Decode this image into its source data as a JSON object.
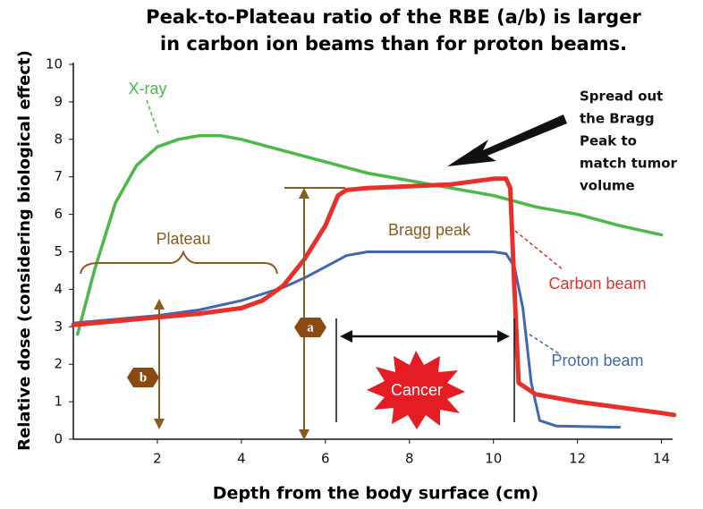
{
  "chart_data": {
    "type": "line",
    "title": [
      "Peak-to-Plateau ratio of the RBE (a/b) is larger",
      "in carbon ion beams than for proton beams."
    ],
    "x_label": "Depth from the body surface (cm)",
    "y_label": "Relative dose (considering biological effect)",
    "xlim": [
      0,
      14.2
    ],
    "ylim": [
      0,
      10
    ],
    "xticks": [
      2,
      4,
      6,
      8,
      10,
      12,
      14
    ],
    "yticks": [
      0,
      1,
      2,
      3,
      4,
      5,
      6,
      7,
      8,
      9,
      10
    ],
    "grid": false,
    "series": [
      {
        "name": "X-ray",
        "color": "#4cb847",
        "x": [
          0.1,
          0.5,
          1,
          1.5,
          2,
          2.5,
          3,
          3.5,
          4,
          5,
          6,
          7,
          8,
          9,
          10,
          11,
          12,
          13,
          14
        ],
        "values": [
          2.8,
          4.5,
          6.3,
          7.3,
          7.8,
          8.0,
          8.1,
          8.1,
          8.0,
          7.7,
          7.4,
          7.1,
          6.9,
          6.7,
          6.5,
          6.2,
          6.0,
          5.7,
          5.45
        ]
      },
      {
        "name": "Carbon beam",
        "color": "#e8302a",
        "x": [
          0,
          1,
          2,
          3,
          4,
          4.5,
          5,
          5.5,
          6,
          6.3,
          6.5,
          7,
          8,
          9,
          10,
          10.3,
          10.4,
          10.5,
          10.6,
          11,
          12,
          13,
          14,
          14.3
        ],
        "values": [
          3.05,
          3.15,
          3.25,
          3.35,
          3.5,
          3.7,
          4.1,
          4.8,
          5.7,
          6.5,
          6.65,
          6.7,
          6.75,
          6.8,
          6.95,
          6.95,
          6.7,
          4.0,
          1.5,
          1.2,
          1.0,
          0.85,
          0.7,
          0.65
        ]
      },
      {
        "name": "Proton beam",
        "color": "#3f68b1",
        "x": [
          0,
          1,
          2,
          3,
          4,
          5,
          5.5,
          6,
          6.5,
          7,
          8,
          9,
          10,
          10.3,
          10.5,
          10.7,
          10.9,
          11.1,
          11.5,
          13
        ],
        "values": [
          3.1,
          3.2,
          3.3,
          3.45,
          3.7,
          4.05,
          4.3,
          4.6,
          4.9,
          5.0,
          5.0,
          5.0,
          5.0,
          4.95,
          4.6,
          3.5,
          1.5,
          0.5,
          0.35,
          0.32
        ]
      }
    ],
    "annotations": {
      "plateau": "Plateau",
      "bragg_peak": "Bragg peak",
      "spread": [
        "Spread out",
        "the Bragg",
        "Peak to",
        "match tumor",
        "volume"
      ],
      "a": "a",
      "b": "b",
      "cancer": "Cancer"
    }
  }
}
